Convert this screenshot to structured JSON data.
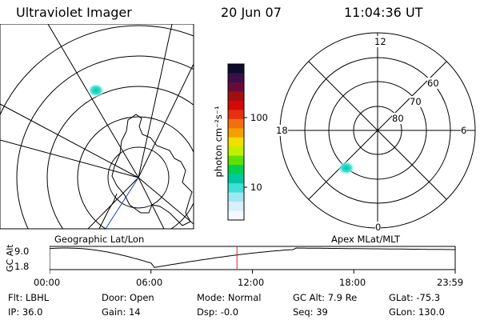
{
  "header": {
    "instrument": "Ultraviolet Imager",
    "date": "20 Jun 07",
    "time": "11:04:36 UT"
  },
  "left_map": {
    "label": "Geographic Lat/Lon"
  },
  "right_map": {
    "label": "Apex MLat/MLT",
    "mlt_labels": {
      "top": "12",
      "right": "6",
      "bottom": "0",
      "left": "18"
    },
    "lat_labels": [
      "60",
      "70",
      "80"
    ]
  },
  "colorbar": {
    "label": "photon cm⁻²s⁻¹",
    "ticks": [
      "100",
      "10"
    ],
    "colors": [
      "#0c0c30",
      "#3a1048",
      "#6a0a3a",
      "#a01010",
      "#d40808",
      "#e83010",
      "#f07010",
      "#f5a000",
      "#f0e000",
      "#c0f000",
      "#60e000",
      "#00d050",
      "#00c8a0",
      "#40e0d8",
      "#a0e8f0",
      "#d8f0f8",
      "#f4f8fc"
    ]
  },
  "timeline": {
    "axis_label": "GC Alt",
    "y_ticks": [
      "9.0",
      "1.8"
    ],
    "x_ticks": [
      "00:00",
      "06:00",
      "12:00",
      "18:00",
      "23:59"
    ],
    "current_time_fraction": 0.462
  },
  "info": {
    "row1": [
      {
        "label": "Flt:",
        "value": "LBHL"
      },
      {
        "label": "Door:",
        "value": "Open"
      },
      {
        "label": "Mode:",
        "value": "Normal"
      },
      {
        "label": "GC Alt:",
        "value": "7.9 Re"
      },
      {
        "label": "GLat:",
        "value": "-75.3"
      }
    ],
    "row2": [
      {
        "label": "IP:",
        "value": "36.0"
      },
      {
        "label": "Gain:",
        "value": "14"
      },
      {
        "label": "Dsp:",
        "value": "-0.0"
      },
      {
        "label": "Seq:",
        "value": "39"
      },
      {
        "label": "GLon:",
        "value": "130.0"
      }
    ]
  },
  "colors": {
    "current_time_marker": "#e02020",
    "line": "#000000"
  }
}
